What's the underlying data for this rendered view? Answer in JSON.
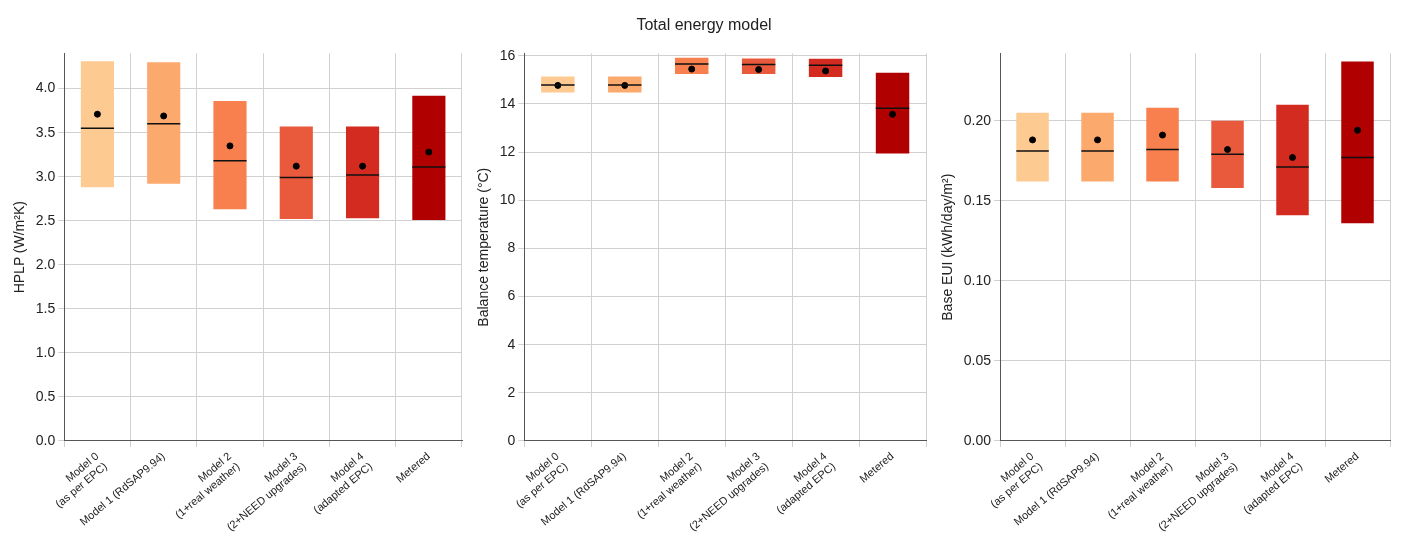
{
  "chart_data": [
    {
      "type": "box",
      "ylabel": "HPLP (W/m²K)",
      "categories": [
        "Model 0\n(as per EPC)",
        "Model 1 (RdSAP9.94)",
        "Model 2\n(1+real weather)",
        "Model 3\n(2+NEED upgrades)",
        "Model 4\n(adapted EPC)",
        "Metered"
      ],
      "colors": [
        "#fdca92",
        "#fca96e",
        "#f7804e",
        "#e95a3c",
        "#d42b20",
        "#b10000"
      ],
      "boxes": [
        {
          "low": 2.88,
          "q1": 2.88,
          "median": 3.55,
          "q3": 4.31,
          "high": 4.31,
          "mean": 3.71
        },
        {
          "low": 2.92,
          "q1": 2.92,
          "median": 3.6,
          "q3": 4.3,
          "high": 4.3,
          "mean": 3.69
        },
        {
          "low": 2.63,
          "q1": 2.63,
          "median": 3.18,
          "q3": 3.86,
          "high": 3.86,
          "mean": 3.35
        },
        {
          "low": 2.52,
          "q1": 2.52,
          "median": 2.99,
          "q3": 3.57,
          "high": 3.57,
          "mean": 3.12
        },
        {
          "low": 2.53,
          "q1": 2.53,
          "median": 3.02,
          "q3": 3.57,
          "high": 3.57,
          "mean": 3.12
        },
        {
          "low": 2.51,
          "q1": 2.51,
          "median": 3.11,
          "q3": 3.92,
          "high": 3.92,
          "mean": 3.28
        }
      ],
      "ylim": [
        0,
        4.4
      ],
      "yticks": [
        {
          "value": 0,
          "label": "0.0"
        },
        {
          "value": 0.5,
          "label": "0.5"
        },
        {
          "value": 1,
          "label": "1.0"
        },
        {
          "value": 1.5,
          "label": "1.5"
        },
        {
          "value": 2,
          "label": "2.0"
        },
        {
          "value": 2.5,
          "label": "2.5"
        },
        {
          "value": 3,
          "label": "3.0"
        },
        {
          "value": 3.5,
          "label": "3.5"
        },
        {
          "value": 4,
          "label": "4.0"
        }
      ],
      "grid": true
    },
    {
      "type": "box",
      "title": "Total energy model",
      "ylabel": "Balance temperature (°C)",
      "categories": [
        "Model 0\n(as per EPC)",
        "Model 1 (RdSAP9.94)",
        "Model 2\n(1+real weather)",
        "Model 3\n(2+NEED upgrades)",
        "Model 4\n(adapted EPC)",
        "Metered"
      ],
      "colors": [
        "#fdca92",
        "#fca96e",
        "#f7804e",
        "#e95a3c",
        "#d42b20",
        "#b10000"
      ],
      "boxes": [
        {
          "low": 14.48,
          "q1": 14.48,
          "median": 14.79,
          "q3": 15.14,
          "high": 15.14,
          "mean": 14.77
        },
        {
          "low": 14.48,
          "q1": 14.48,
          "median": 14.79,
          "q3": 15.14,
          "high": 15.14,
          "mean": 14.77
        },
        {
          "low": 15.24,
          "q1": 15.24,
          "median": 15.66,
          "q3": 15.92,
          "high": 15.92,
          "mean": 15.45
        },
        {
          "low": 15.24,
          "q1": 15.24,
          "median": 15.64,
          "q3": 15.89,
          "high": 15.89,
          "mean": 15.43
        },
        {
          "low": 15.12,
          "q1": 15.12,
          "median": 15.61,
          "q3": 15.88,
          "high": 15.88,
          "mean": 15.37
        },
        {
          "low": 11.94,
          "q1": 11.94,
          "median": 13.82,
          "q3": 15.3,
          "high": 15.3,
          "mean": 13.57
        }
      ],
      "ylim": [
        0,
        16.1
      ],
      "yticks": [
        0,
        2,
        4,
        6,
        8,
        10,
        12,
        14,
        16
      ],
      "grid": true
    },
    {
      "type": "box",
      "ylabel": "Base EUI (kWh/day/m²)",
      "categories": [
        "Model 0\n(as per EPC)",
        "Model 1 (RdSAP9.94)",
        "Model 2\n(1+real weather)",
        "Model 3\n(2+NEED upgrades)",
        "Model 4\n(adapted EPC)",
        "Metered"
      ],
      "colors": [
        "#fdca92",
        "#fca96e",
        "#f7804e",
        "#e95a3c",
        "#d42b20",
        "#b10000"
      ],
      "boxes": [
        {
          "low": 0.162,
          "q1": 0.162,
          "median": 0.181,
          "q3": 0.205,
          "high": 0.205,
          "mean": 0.188
        },
        {
          "low": 0.162,
          "q1": 0.162,
          "median": 0.181,
          "q3": 0.205,
          "high": 0.205,
          "mean": 0.188
        },
        {
          "low": 0.162,
          "q1": 0.162,
          "median": 0.182,
          "q3": 0.208,
          "high": 0.208,
          "mean": 0.191
        },
        {
          "low": 0.158,
          "q1": 0.158,
          "median": 0.179,
          "q3": 0.2,
          "high": 0.2,
          "mean": 0.182
        },
        {
          "low": 0.141,
          "q1": 0.141,
          "median": 0.171,
          "q3": 0.21,
          "high": 0.21,
          "mean": 0.177
        },
        {
          "low": 0.136,
          "q1": 0.136,
          "median": 0.177,
          "q3": 0.237,
          "high": 0.237,
          "mean": 0.194
        }
      ],
      "ylim": [
        0,
        0.242
      ],
      "yticks": [
        {
          "value": 0,
          "label": "0.00"
        },
        {
          "value": 0.05,
          "label": "0.05"
        },
        {
          "value": 0.1,
          "label": "0.10"
        },
        {
          "value": 0.15,
          "label": "0.15"
        },
        {
          "value": 0.2,
          "label": "0.20"
        }
      ],
      "grid": true
    }
  ]
}
